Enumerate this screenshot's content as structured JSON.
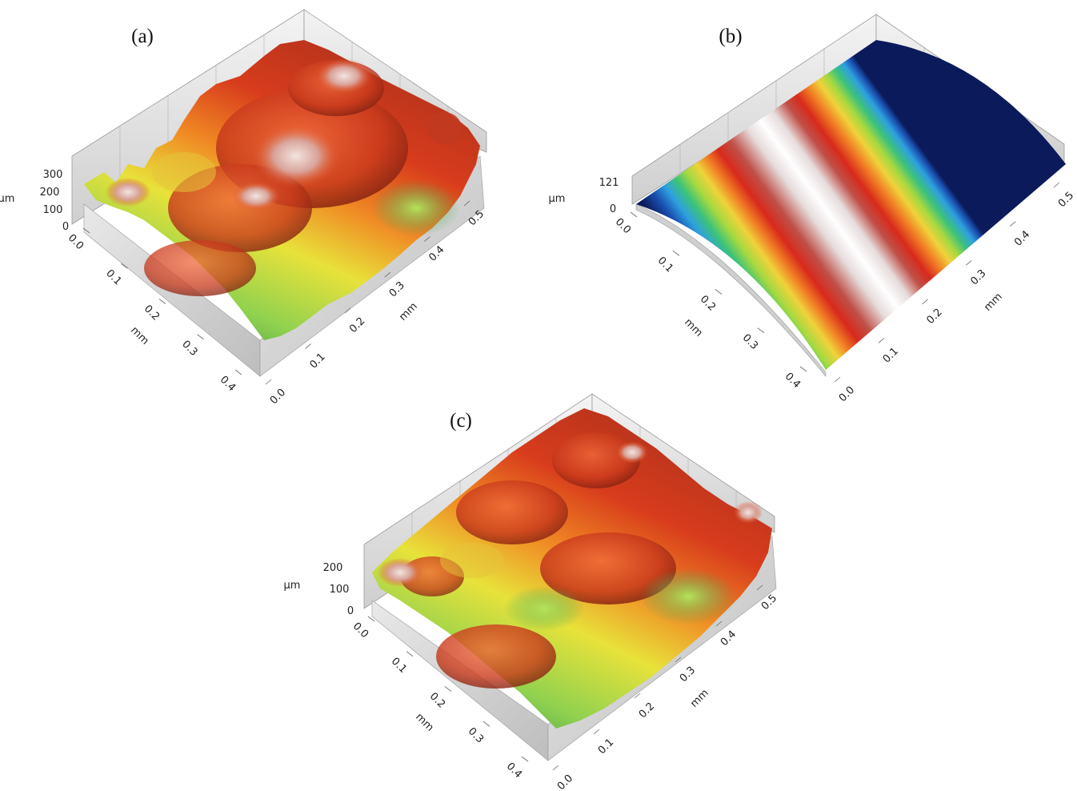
{
  "chart_data": [
    {
      "type": "surface",
      "panel_label": "(a)",
      "z_unit": "µm",
      "z_ticks": [
        "300",
        "200",
        "100",
        "0"
      ],
      "x_unit": "mm",
      "x_ticks": [
        "0.0",
        "0.1",
        "0.2",
        "0.3",
        "0.4"
      ],
      "y_unit": "mm",
      "y_ticks": [
        "0.0",
        "0.1",
        "0.2",
        "0.3",
        "0.4",
        "0.5"
      ]
    },
    {
      "type": "surface",
      "panel_label": "(b)",
      "z_unit": "µm",
      "z_ticks": [
        "121",
        "0"
      ],
      "x_unit": "mm",
      "x_ticks": [
        "0.0",
        "0.1",
        "0.2",
        "0.3",
        "0.4"
      ],
      "y_unit": "mm",
      "y_ticks": [
        "0.0",
        "0.1",
        "0.2",
        "0.3",
        "0.4",
        "0.5"
      ]
    },
    {
      "type": "surface",
      "panel_label": "(c)",
      "z_unit": "µm",
      "z_ticks": [
        "200",
        "100",
        "0"
      ],
      "x_unit": "mm",
      "x_ticks": [
        "0.0",
        "0.1",
        "0.2",
        "0.3",
        "0.4"
      ],
      "y_unit": "mm",
      "y_ticks": [
        "0.0",
        "0.1",
        "0.2",
        "0.3",
        "0.4",
        "0.5"
      ]
    }
  ]
}
